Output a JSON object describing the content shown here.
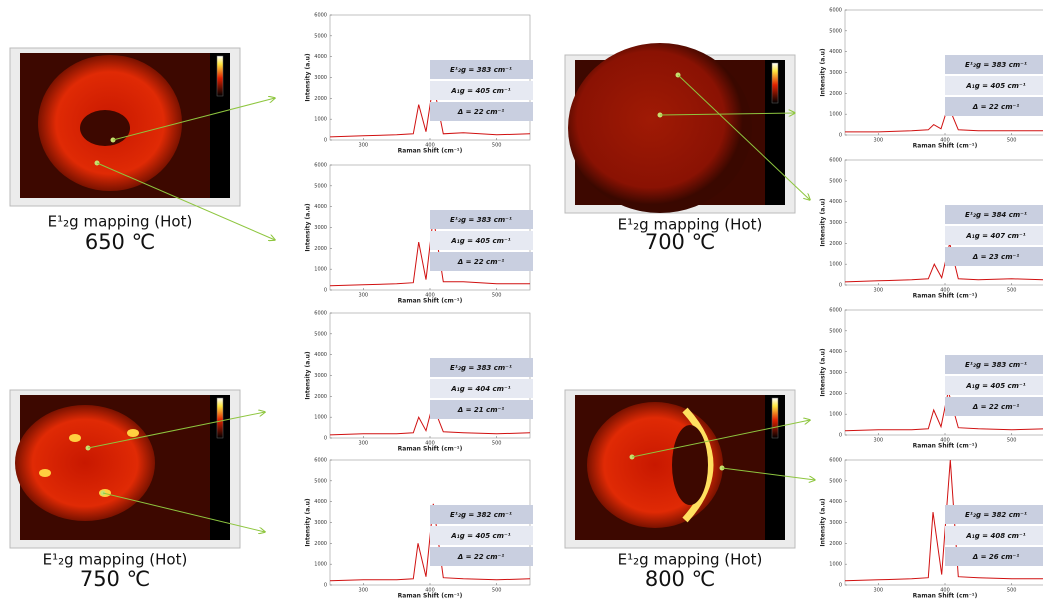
{
  "maps": [
    {
      "caption": "E¹₂g mapping (Hot)",
      "temperature": "650 ℃"
    },
    {
      "caption": "E¹₂g mapping (Hot)",
      "temperature": "700 ℃"
    },
    {
      "caption": "E¹₂g mapping (Hot)",
      "temperature": "750 ℃"
    },
    {
      "caption": "E¹₂g mapping (Hot)",
      "temperature": "800 ℃"
    }
  ],
  "chart_data": [
    {
      "type": "line",
      "xlabel": "Raman Shift (cm⁻¹)",
      "ylabel": "Intensity (a.u)",
      "color": "#d01010",
      "x": [
        250,
        300,
        350,
        375,
        383,
        394,
        405,
        420,
        450,
        500,
        550
      ],
      "values": [
        150,
        200,
        250,
        300,
        1700,
        400,
        2700,
        300,
        350,
        250,
        300
      ],
      "xlim": [
        250,
        550
      ],
      "ylim": [
        0,
        6000
      ],
      "xticks": [
        300,
        400,
        500
      ],
      "yticks": [
        0,
        1000,
        2000,
        3000,
        4000,
        5000,
        6000
      ],
      "annotations": [
        "E¹₂g = 383 cm⁻¹",
        "A₁g = 405 cm⁻¹",
        "Δ = 22 cm⁻¹"
      ]
    },
    {
      "type": "line",
      "xlabel": "Raman Shift (cm⁻¹)",
      "ylabel": "Intensity (a.u)",
      "color": "#d01010",
      "x": [
        250,
        300,
        350,
        375,
        383,
        394,
        405,
        420,
        450,
        500,
        550
      ],
      "values": [
        200,
        250,
        300,
        350,
        2300,
        500,
        3500,
        400,
        400,
        300,
        300
      ],
      "xlim": [
        250,
        550
      ],
      "ylim": [
        0,
        6000
      ],
      "xticks": [
        300,
        400,
        500
      ],
      "yticks": [
        0,
        1000,
        2000,
        3000,
        4000,
        5000,
        6000
      ],
      "annotations": [
        "E¹₂g = 383 cm⁻¹",
        "A₁g = 405 cm⁻¹",
        "Δ = 22 cm⁻¹"
      ]
    },
    {
      "type": "line",
      "xlabel": "Raman Shift (cm⁻¹)",
      "ylabel": "Intensity (a.u)",
      "color": "#d01010",
      "x": [
        250,
        300,
        350,
        375,
        383,
        394,
        404,
        420,
        450,
        500,
        550
      ],
      "values": [
        150,
        200,
        200,
        250,
        1000,
        350,
        1600,
        300,
        250,
        200,
        250
      ],
      "xlim": [
        250,
        550
      ],
      "ylim": [
        0,
        6000
      ],
      "xticks": [
        300,
        400,
        500
      ],
      "yticks": [
        0,
        1000,
        2000,
        3000,
        4000,
        5000,
        6000
      ],
      "annotations": [
        "E¹₂g = 383 cm⁻¹",
        "A₁g = 404 cm⁻¹",
        "Δ = 21 cm⁻¹"
      ]
    },
    {
      "type": "line",
      "xlabel": "Raman Shift (cm⁻¹)",
      "ylabel": "Intensity (a.u)",
      "color": "#d01010",
      "x": [
        250,
        300,
        350,
        375,
        382,
        394,
        405,
        420,
        450,
        500,
        550
      ],
      "values": [
        200,
        250,
        250,
        300,
        2000,
        400,
        3900,
        350,
        300,
        250,
        300
      ],
      "xlim": [
        250,
        550
      ],
      "ylim": [
        0,
        6000
      ],
      "xticks": [
        300,
        400,
        500
      ],
      "yticks": [
        0,
        1000,
        2000,
        3000,
        4000,
        5000,
        6000
      ],
      "annotations": [
        "E¹₂g = 382 cm⁻¹",
        "A₁g = 405 cm⁻¹",
        "Δ = 22 cm⁻¹"
      ]
    },
    {
      "type": "line",
      "xlabel": "Raman Shift (cm⁻¹)",
      "ylabel": "Intensity (a.u)",
      "color": "#d01010",
      "x": [
        250,
        300,
        350,
        375,
        383,
        394,
        405,
        420,
        450,
        500,
        550
      ],
      "values": [
        150,
        150,
        200,
        250,
        500,
        300,
        1400,
        250,
        200,
        200,
        200
      ],
      "xlim": [
        250,
        550
      ],
      "ylim": [
        0,
        6000
      ],
      "xticks": [
        300,
        400,
        500
      ],
      "yticks": [
        0,
        1000,
        2000,
        3000,
        4000,
        5000,
        6000
      ],
      "annotations": [
        "E¹₂g = 383 cm⁻¹",
        "A₁g = 405 cm⁻¹",
        "Δ = 22 cm⁻¹"
      ]
    },
    {
      "type": "line",
      "xlabel": "Raman Shift (cm⁻¹)",
      "ylabel": "Intensity (a.u)",
      "color": "#d01010",
      "x": [
        250,
        300,
        350,
        375,
        384,
        395,
        407,
        420,
        450,
        500,
        550
      ],
      "values": [
        150,
        200,
        250,
        300,
        1000,
        350,
        2000,
        300,
        250,
        300,
        250
      ],
      "xlim": [
        250,
        550
      ],
      "ylim": [
        0,
        6000
      ],
      "xticks": [
        300,
        400,
        500
      ],
      "yticks": [
        0,
        1000,
        2000,
        3000,
        4000,
        5000,
        6000
      ],
      "annotations": [
        "E¹₂g = 384 cm⁻¹",
        "A₁g = 407 cm⁻¹",
        "Δ = 23 cm⁻¹"
      ]
    },
    {
      "type": "line",
      "xlabel": "Raman Shift (cm⁻¹)",
      "ylabel": "Intensity (a.u)",
      "color": "#d01010",
      "x": [
        250,
        300,
        350,
        375,
        383,
        394,
        405,
        420,
        450,
        500,
        550
      ],
      "values": [
        200,
        250,
        250,
        300,
        1200,
        400,
        2100,
        350,
        300,
        250,
        300
      ],
      "xlim": [
        250,
        550
      ],
      "ylim": [
        0,
        6000
      ],
      "xticks": [
        300,
        400,
        500
      ],
      "yticks": [
        0,
        1000,
        2000,
        3000,
        4000,
        5000,
        6000
      ],
      "annotations": [
        "E¹₂g = 383 cm⁻¹",
        "A₁g = 405 cm⁻¹",
        "Δ = 22 cm⁻¹"
      ]
    },
    {
      "type": "line",
      "xlabel": "Raman Shift (cm⁻¹)",
      "ylabel": "Intensity (a.u)",
      "color": "#d01010",
      "x": [
        250,
        300,
        350,
        375,
        382,
        395,
        408,
        420,
        450,
        500,
        550
      ],
      "values": [
        200,
        250,
        300,
        350,
        3500,
        500,
        6000,
        400,
        350,
        300,
        300
      ],
      "xlim": [
        250,
        550
      ],
      "ylim": [
        0,
        6000
      ],
      "xticks": [
        300,
        400,
        500
      ],
      "yticks": [
        0,
        1000,
        2000,
        3000,
        4000,
        5000,
        6000
      ],
      "annotations": [
        "E¹₂g = 382 cm⁻¹",
        "A₁g = 408 cm⁻¹",
        "Δ = 26 cm⁻¹"
      ]
    }
  ]
}
